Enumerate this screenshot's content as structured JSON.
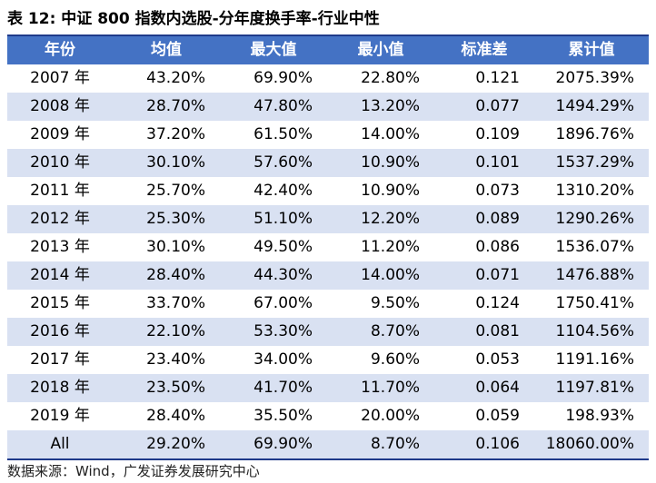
{
  "title": "表 12: 中证 800 指数内选股-分年度换手率-行业中性",
  "table": {
    "headers": [
      "年份",
      "均值",
      "最大值",
      "最小值",
      "标准差",
      "累计值"
    ],
    "rows": [
      [
        "2007 年",
        "43.20%",
        "69.90%",
        "22.80%",
        "0.121",
        "2075.39%"
      ],
      [
        "2008 年",
        "28.70%",
        "47.80%",
        "13.20%",
        "0.077",
        "1494.29%"
      ],
      [
        "2009 年",
        "37.20%",
        "61.50%",
        "14.00%",
        "0.109",
        "1896.76%"
      ],
      [
        "2010 年",
        "30.10%",
        "57.60%",
        "10.90%",
        "0.101",
        "1537.29%"
      ],
      [
        "2011 年",
        "25.70%",
        "42.40%",
        "10.90%",
        "0.073",
        "1310.20%"
      ],
      [
        "2012 年",
        "25.30%",
        "51.10%",
        "12.20%",
        "0.089",
        "1290.26%"
      ],
      [
        "2013 年",
        "30.10%",
        "49.50%",
        "11.20%",
        "0.086",
        "1536.07%"
      ],
      [
        "2014 年",
        "28.40%",
        "44.30%",
        "14.00%",
        "0.071",
        "1476.88%"
      ],
      [
        "2015 年",
        "33.70%",
        "67.00%",
        "9.50%",
        "0.124",
        "1750.41%"
      ],
      [
        "2016 年",
        "22.10%",
        "53.30%",
        "8.70%",
        "0.081",
        "1104.56%"
      ],
      [
        "2017 年",
        "23.40%",
        "34.00%",
        "9.60%",
        "0.053",
        "1191.16%"
      ],
      [
        "2018 年",
        "23.50%",
        "41.70%",
        "11.70%",
        "0.064",
        "1197.81%"
      ],
      [
        "2019 年",
        "28.40%",
        "35.50%",
        "20.00%",
        "0.059",
        "198.93%"
      ],
      [
        "All",
        "29.20%",
        "69.90%",
        "8.70%",
        "0.106",
        "18060.00%"
      ]
    ]
  },
  "source": "数据来源：Wind，广发证券发展研究中心",
  "colors": {
    "header_bg": "#4472c4",
    "stripe_bg": "#d9e1f2",
    "rule": "#1f3a8a"
  }
}
